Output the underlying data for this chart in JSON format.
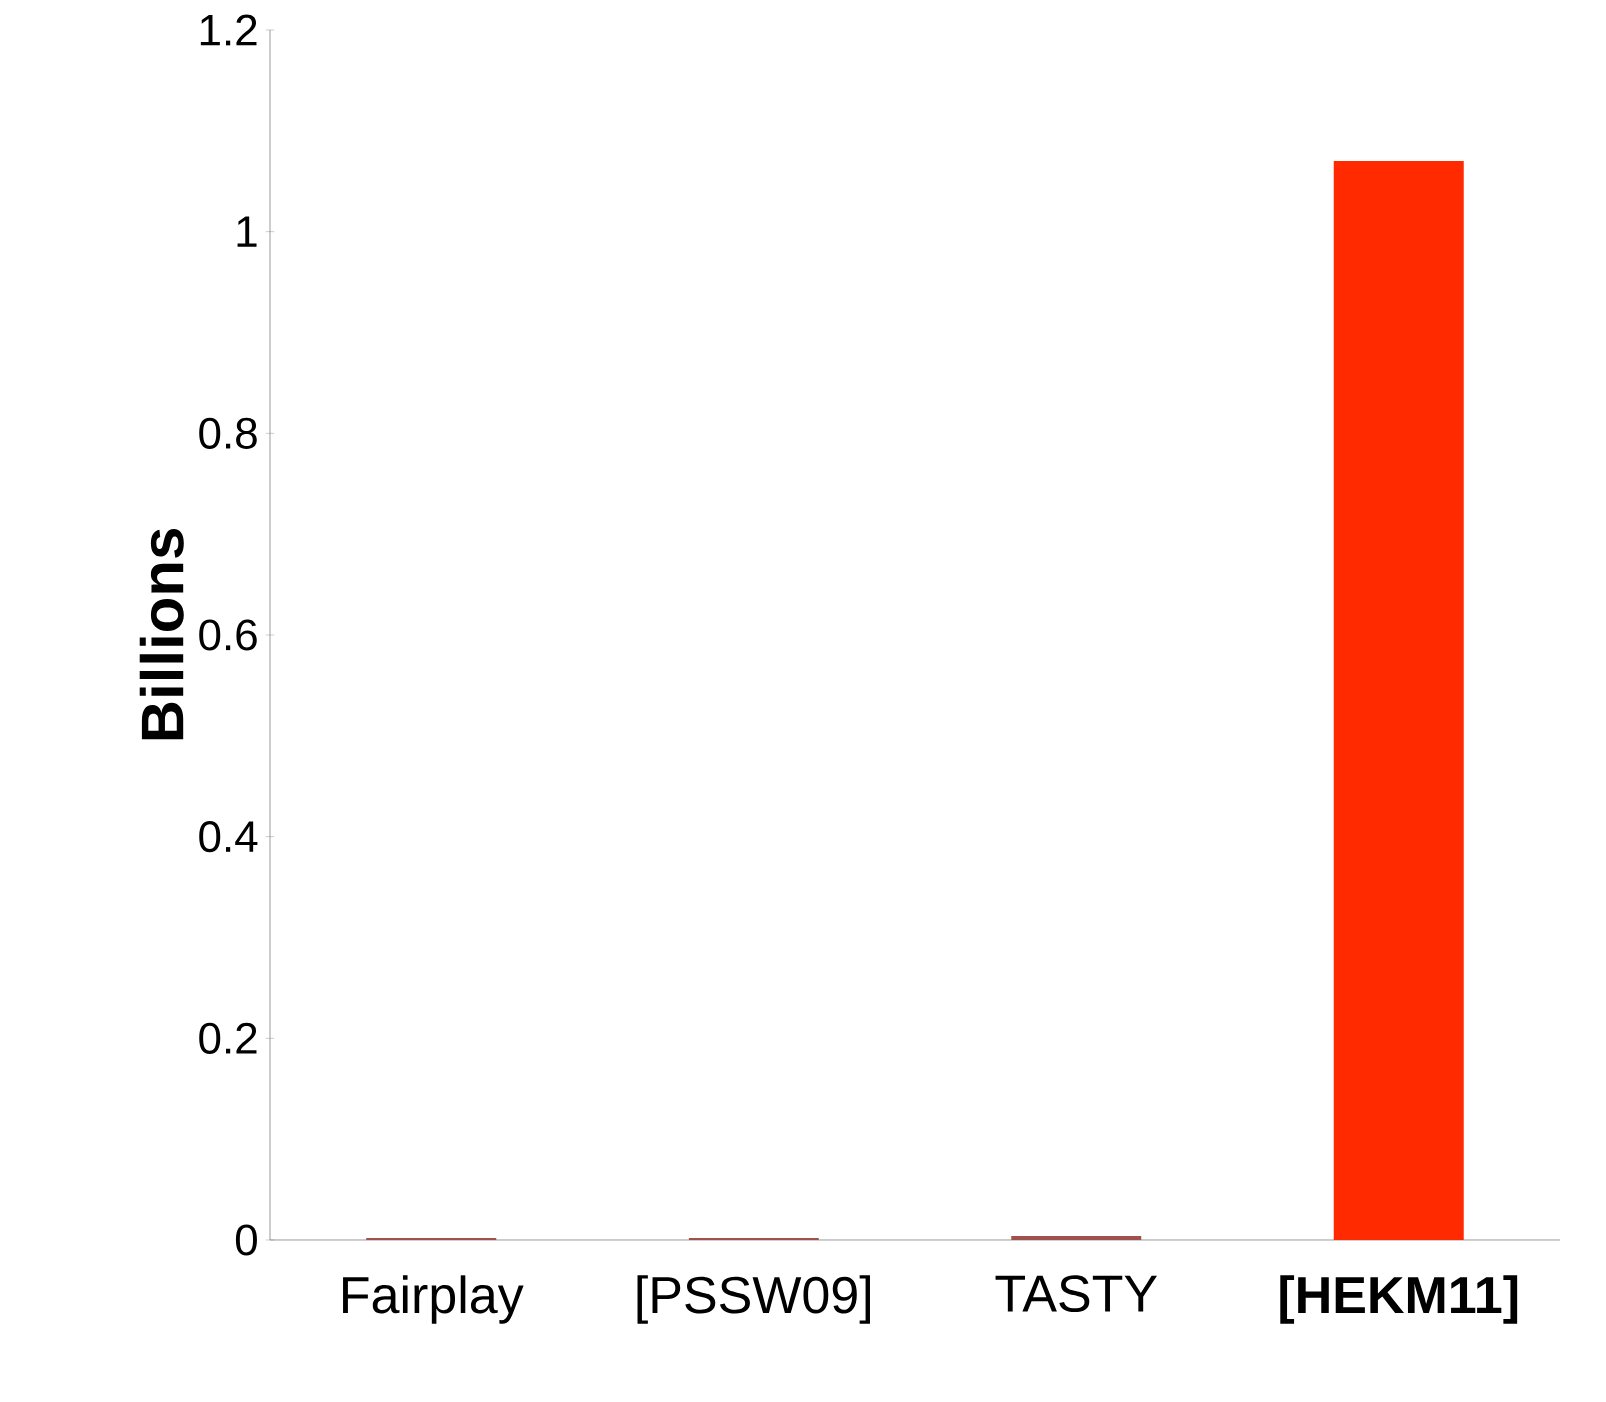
{
  "chart_data": {
    "type": "bar",
    "ylabel": "Billions",
    "categories": [
      "Fairplay",
      "[PSSW09]",
      "TASTY",
      "**[HEKM11]**"
    ],
    "values": [
      0.002,
      0.002,
      0.004,
      1.07
    ],
    "colors": [
      "#a0504d",
      "#a0504d",
      "#a0504d",
      "#ff2a00"
    ],
    "ylim": [
      0,
      1.2
    ],
    "yticks": [
      0,
      0.2,
      0.4,
      0.6,
      0.8,
      1,
      1.2
    ],
    "grid": false
  }
}
